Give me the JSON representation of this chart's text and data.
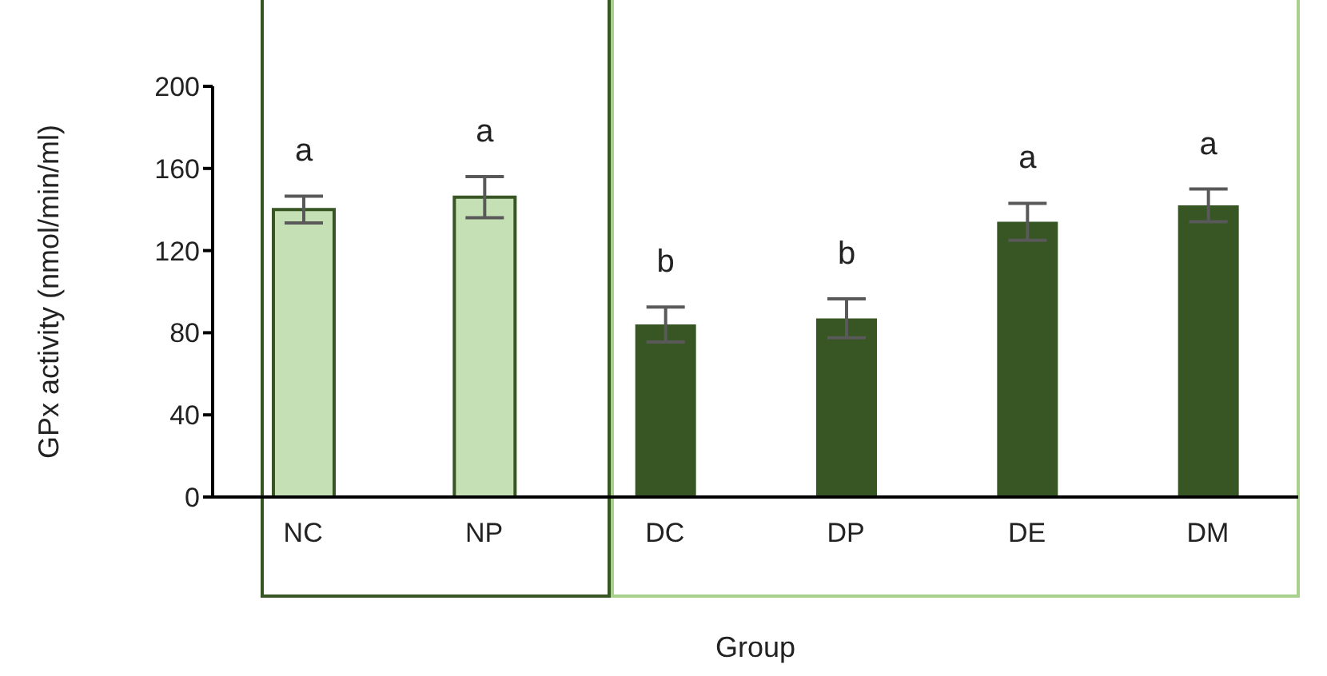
{
  "chart_data": {
    "type": "bar",
    "xlabel": "Group",
    "ylabel": "GPx activity (nmol/min/ml)",
    "categories": [
      "NC",
      "NP",
      "DC",
      "DP",
      "DE",
      "DM"
    ],
    "values": [
      140,
      146,
      84,
      87,
      134,
      142
    ],
    "colors": [
      "#c5e0b4",
      "#c5e0b4",
      "#375623",
      "#375623",
      "#375623",
      "#375623"
    ],
    "errors": [
      6.5,
      10,
      8.5,
      9.5,
      9,
      8
    ],
    "ylim": [
      0,
      200
    ],
    "yticks": [
      0,
      40,
      80,
      120,
      160,
      200
    ],
    "grid": false,
    "legend": false,
    "annotations": [
      "a",
      "a",
      "b",
      "b",
      "a",
      "a"
    ]
  }
}
